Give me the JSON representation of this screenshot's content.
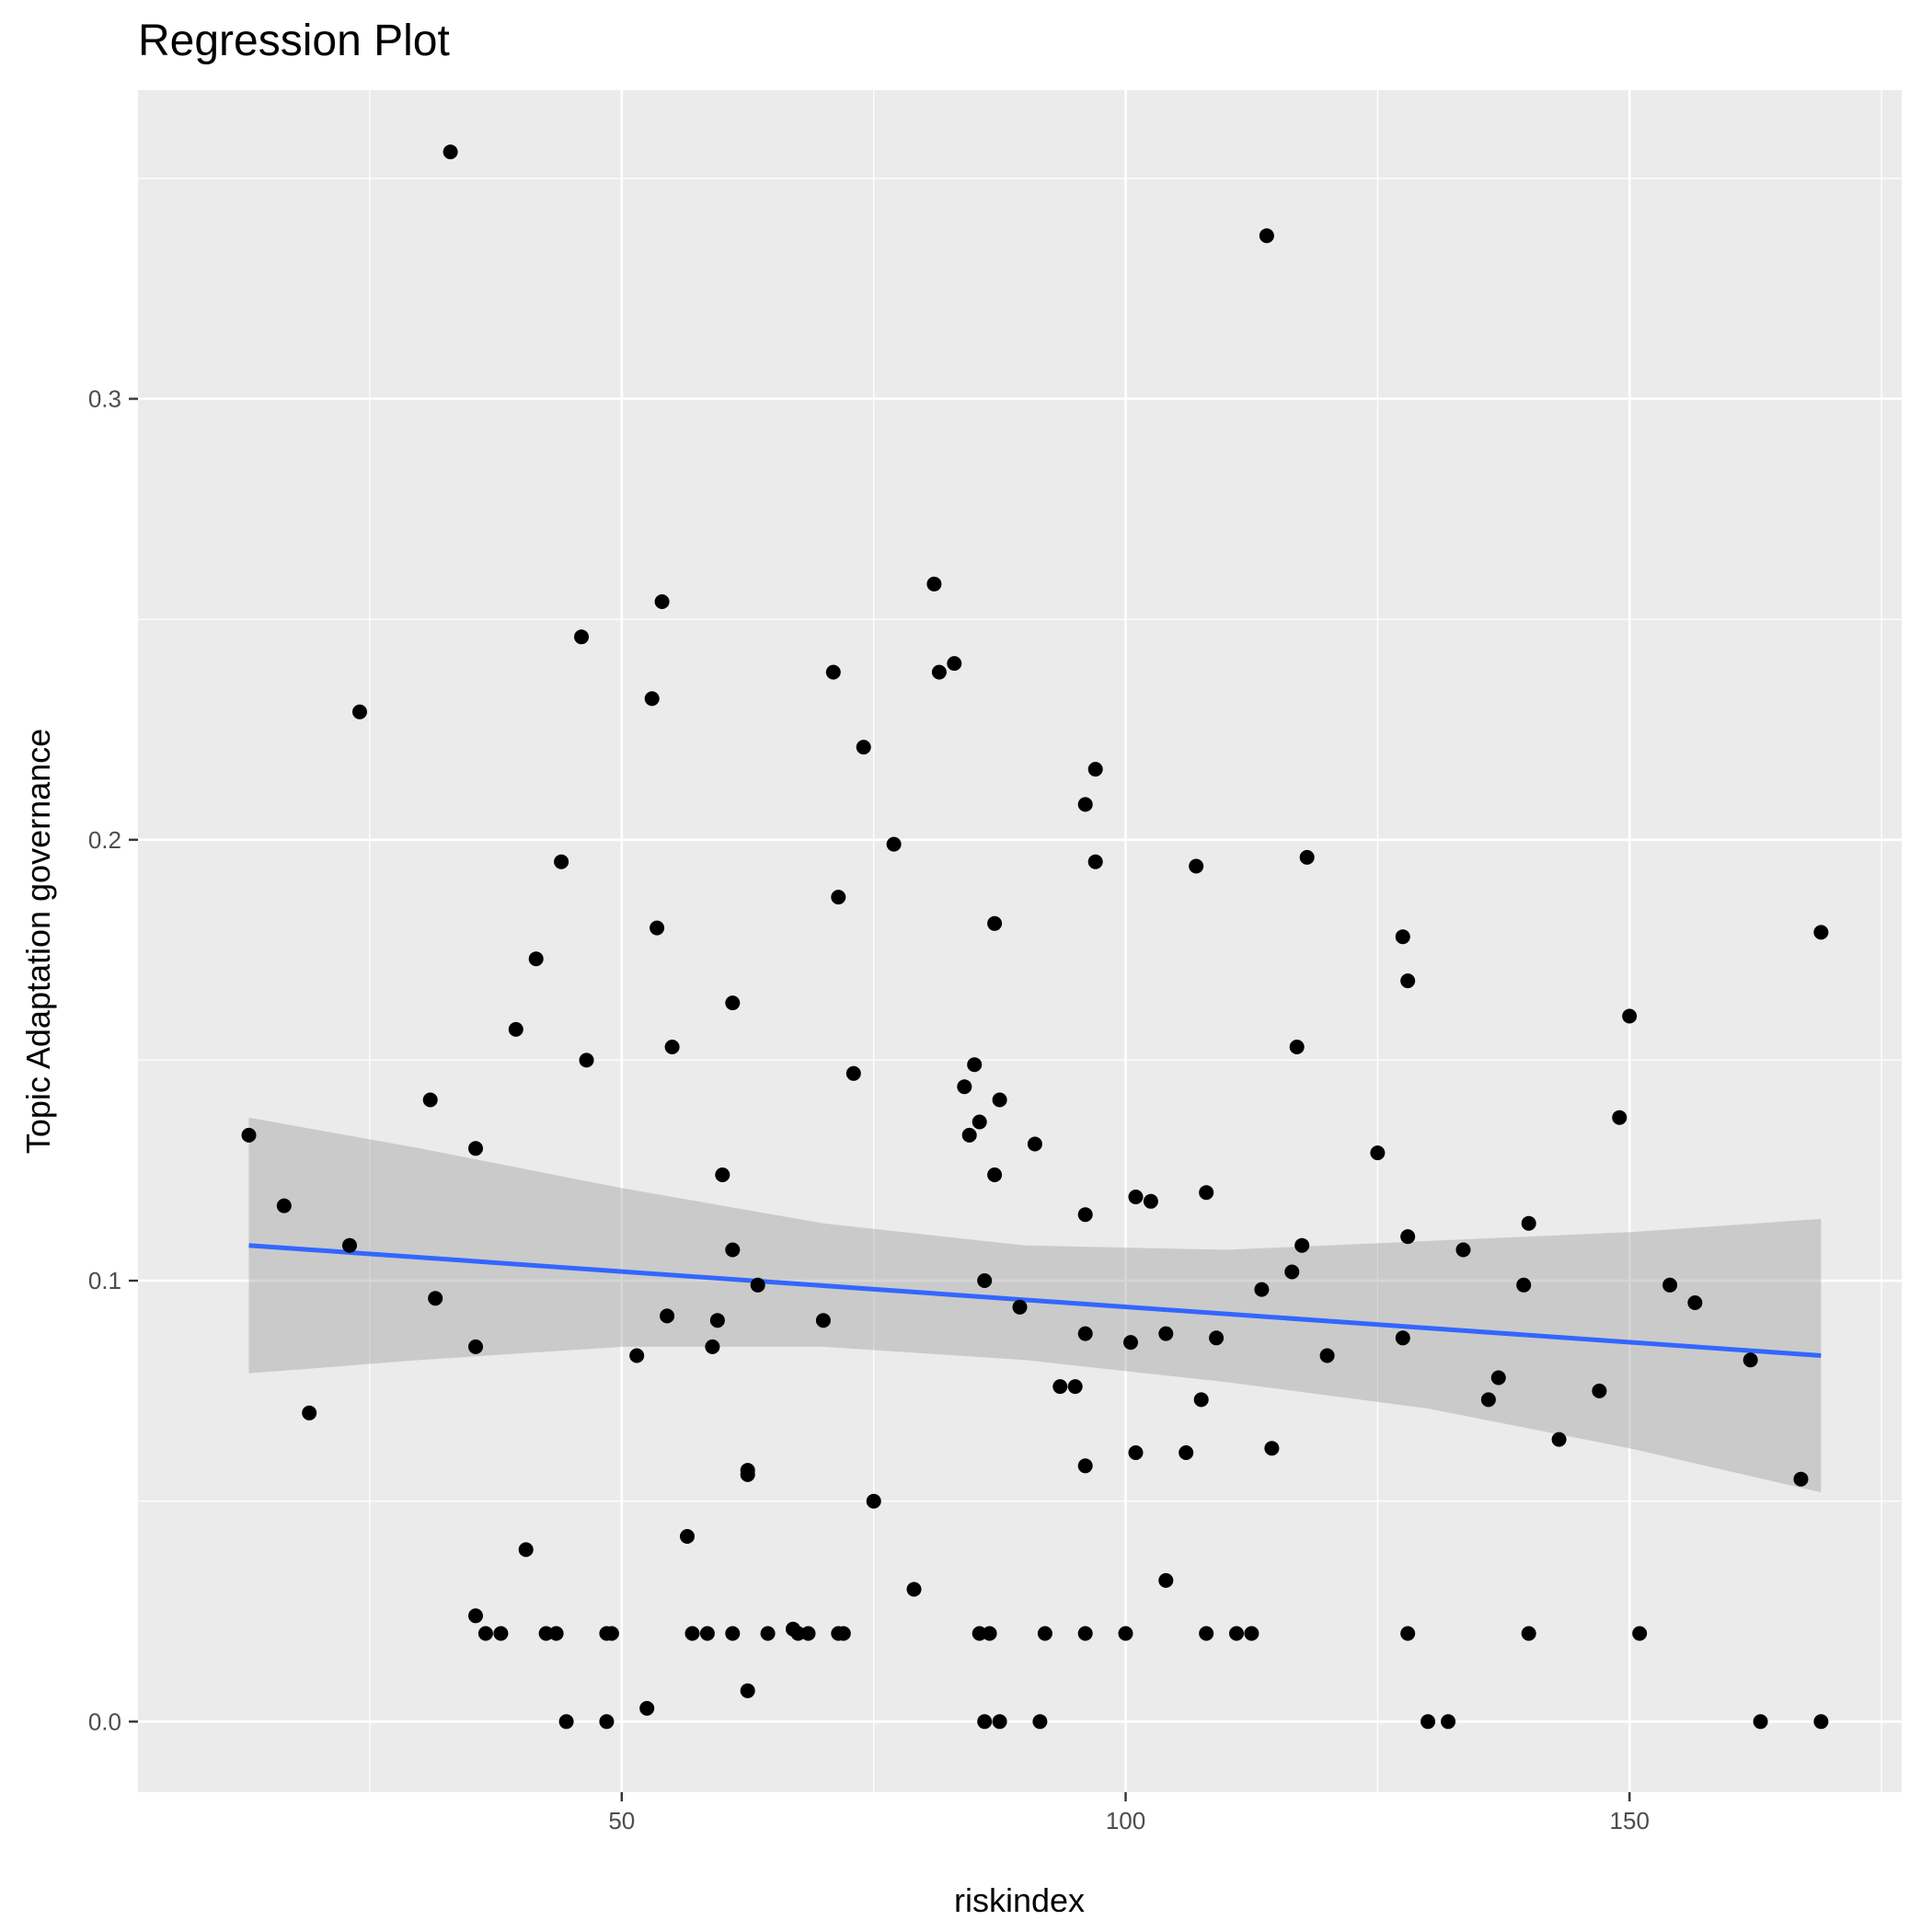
{
  "chart_data": {
    "type": "scatter",
    "title": "Regression Plot",
    "xlabel": "riskindex",
    "ylabel": "Topic Adaptation governance",
    "xlim": [
      2,
      177
    ],
    "ylim": [
      -0.016,
      0.37
    ],
    "x_ticks": [
      50,
      100,
      150
    ],
    "x_tick_labels": [
      "50",
      "100",
      "150"
    ],
    "y_ticks": [
      0.0,
      0.1,
      0.2,
      0.3
    ],
    "y_tick_labels": [
      "0.0",
      "0.1",
      "0.2",
      "0.3"
    ],
    "grid": true,
    "colors": {
      "panel": "#ebebeb",
      "grid": "#ffffff",
      "points": "#000000",
      "line": "#3366ff",
      "band": "#999999"
    },
    "points": [
      {
        "x": 33,
        "y": 0.356
      },
      {
        "x": 114,
        "y": 0.337
      },
      {
        "x": 81,
        "y": 0.258
      },
      {
        "x": 54,
        "y": 0.254
      },
      {
        "x": 46,
        "y": 0.246
      },
      {
        "x": 83,
        "y": 0.24
      },
      {
        "x": 71,
        "y": 0.238
      },
      {
        "x": 81.5,
        "y": 0.238
      },
      {
        "x": 53,
        "y": 0.232
      },
      {
        "x": 24,
        "y": 0.229
      },
      {
        "x": 74,
        "y": 0.221
      },
      {
        "x": 97,
        "y": 0.216
      },
      {
        "x": 96,
        "y": 0.208
      },
      {
        "x": 77,
        "y": 0.199
      },
      {
        "x": 118,
        "y": 0.196
      },
      {
        "x": 44,
        "y": 0.195
      },
      {
        "x": 97,
        "y": 0.195
      },
      {
        "x": 107,
        "y": 0.194
      },
      {
        "x": 71.5,
        "y": 0.187
      },
      {
        "x": 87,
        "y": 0.181
      },
      {
        "x": 53.5,
        "y": 0.18
      },
      {
        "x": 169,
        "y": 0.179
      },
      {
        "x": 127.5,
        "y": 0.178
      },
      {
        "x": 41.5,
        "y": 0.173
      },
      {
        "x": 128,
        "y": 0.168
      },
      {
        "x": 61,
        "y": 0.163
      },
      {
        "x": 150,
        "y": 0.16
      },
      {
        "x": 39.5,
        "y": 0.157
      },
      {
        "x": 55,
        "y": 0.153
      },
      {
        "x": 117,
        "y": 0.153
      },
      {
        "x": 46.5,
        "y": 0.15
      },
      {
        "x": 85,
        "y": 0.149
      },
      {
        "x": 73,
        "y": 0.147
      },
      {
        "x": 84,
        "y": 0.144
      },
      {
        "x": 31,
        "y": 0.141
      },
      {
        "x": 87.5,
        "y": 0.141
      },
      {
        "x": 149,
        "y": 0.137
      },
      {
        "x": 85.5,
        "y": 0.136
      },
      {
        "x": 84.5,
        "y": 0.133
      },
      {
        "x": 13,
        "y": 0.133
      },
      {
        "x": 91,
        "y": 0.131
      },
      {
        "x": 35.5,
        "y": 0.13
      },
      {
        "x": 125,
        "y": 0.129
      },
      {
        "x": 60,
        "y": 0.124
      },
      {
        "x": 87,
        "y": 0.124
      },
      {
        "x": 108,
        "y": 0.12
      },
      {
        "x": 101,
        "y": 0.119
      },
      {
        "x": 102.5,
        "y": 0.118
      },
      {
        "x": 16.5,
        "y": 0.117
      },
      {
        "x": 96,
        "y": 0.115
      },
      {
        "x": 140,
        "y": 0.113
      },
      {
        "x": 128,
        "y": 0.11
      },
      {
        "x": 23,
        "y": 0.108
      },
      {
        "x": 117.5,
        "y": 0.108
      },
      {
        "x": 61,
        "y": 0.107
      },
      {
        "x": 133.5,
        "y": 0.107
      },
      {
        "x": 116.5,
        "y": 0.102
      },
      {
        "x": 86,
        "y": 0.1
      },
      {
        "x": 154,
        "y": 0.099
      },
      {
        "x": 139.5,
        "y": 0.099
      },
      {
        "x": 63.5,
        "y": 0.099
      },
      {
        "x": 113.5,
        "y": 0.098
      },
      {
        "x": 31.5,
        "y": 0.096
      },
      {
        "x": 156.5,
        "y": 0.095
      },
      {
        "x": 89.5,
        "y": 0.094
      },
      {
        "x": 54.5,
        "y": 0.092
      },
      {
        "x": 59.5,
        "y": 0.091
      },
      {
        "x": 70,
        "y": 0.091
      },
      {
        "x": 96,
        "y": 0.088
      },
      {
        "x": 104,
        "y": 0.088
      },
      {
        "x": 109,
        "y": 0.087
      },
      {
        "x": 127.5,
        "y": 0.087
      },
      {
        "x": 100.5,
        "y": 0.086
      },
      {
        "x": 59,
        "y": 0.085
      },
      {
        "x": 35.5,
        "y": 0.085
      },
      {
        "x": 51.5,
        "y": 0.083
      },
      {
        "x": 120,
        "y": 0.083
      },
      {
        "x": 162,
        "y": 0.082
      },
      {
        "x": 137,
        "y": 0.078
      },
      {
        "x": 93.5,
        "y": 0.076
      },
      {
        "x": 95,
        "y": 0.076
      },
      {
        "x": 147,
        "y": 0.075
      },
      {
        "x": 136,
        "y": 0.073
      },
      {
        "x": 107.5,
        "y": 0.073
      },
      {
        "x": 19,
        "y": 0.07
      },
      {
        "x": 143,
        "y": 0.064
      },
      {
        "x": 114.5,
        "y": 0.062
      },
      {
        "x": 101,
        "y": 0.061
      },
      {
        "x": 106,
        "y": 0.061
      },
      {
        "x": 96,
        "y": 0.058
      },
      {
        "x": 62.5,
        "y": 0.057
      },
      {
        "x": 62.5,
        "y": 0.056
      },
      {
        "x": 167,
        "y": 0.055
      },
      {
        "x": 75,
        "y": 0.05
      },
      {
        "x": 56.5,
        "y": 0.042
      },
      {
        "x": 40.5,
        "y": 0.039
      },
      {
        "x": 104,
        "y": 0.032
      },
      {
        "x": 79,
        "y": 0.03
      },
      {
        "x": 35.5,
        "y": 0.024
      },
      {
        "x": 36.5,
        "y": 0.02
      },
      {
        "x": 38,
        "y": 0.02
      },
      {
        "x": 42.5,
        "y": 0.02
      },
      {
        "x": 43.5,
        "y": 0.02
      },
      {
        "x": 48.5,
        "y": 0.02
      },
      {
        "x": 49,
        "y": 0.02
      },
      {
        "x": 57,
        "y": 0.02
      },
      {
        "x": 58.5,
        "y": 0.02
      },
      {
        "x": 61,
        "y": 0.02
      },
      {
        "x": 64.5,
        "y": 0.02
      },
      {
        "x": 67,
        "y": 0.021
      },
      {
        "x": 67.5,
        "y": 0.02
      },
      {
        "x": 68.5,
        "y": 0.02
      },
      {
        "x": 71.5,
        "y": 0.02
      },
      {
        "x": 72,
        "y": 0.02
      },
      {
        "x": 85.5,
        "y": 0.02
      },
      {
        "x": 86.5,
        "y": 0.02
      },
      {
        "x": 92,
        "y": 0.02
      },
      {
        "x": 96,
        "y": 0.02
      },
      {
        "x": 100,
        "y": 0.02
      },
      {
        "x": 108,
        "y": 0.02
      },
      {
        "x": 111,
        "y": 0.02
      },
      {
        "x": 112.5,
        "y": 0.02
      },
      {
        "x": 128,
        "y": 0.02
      },
      {
        "x": 140,
        "y": 0.02
      },
      {
        "x": 151,
        "y": 0.02
      },
      {
        "x": 62.5,
        "y": 0.007
      },
      {
        "x": 52.5,
        "y": 0.003
      },
      {
        "x": 44.5,
        "y": 0.0
      },
      {
        "x": 48.5,
        "y": 0.0
      },
      {
        "x": 86,
        "y": 0.0
      },
      {
        "x": 87.5,
        "y": 0.0
      },
      {
        "x": 91.5,
        "y": 0.0
      },
      {
        "x": 130,
        "y": 0.0
      },
      {
        "x": 132,
        "y": 0.0
      },
      {
        "x": 163,
        "y": 0.0
      },
      {
        "x": 169,
        "y": 0.0
      }
    ],
    "regression": {
      "line": [
        {
          "x": 13,
          "y": 0.108
        },
        {
          "x": 169,
          "y": 0.083
        }
      ],
      "ci_upper": [
        {
          "x": 13,
          "y": 0.137
        },
        {
          "x": 30,
          "y": 0.13
        },
        {
          "x": 50,
          "y": 0.121
        },
        {
          "x": 70,
          "y": 0.113
        },
        {
          "x": 90,
          "y": 0.108
        },
        {
          "x": 110,
          "y": 0.107
        },
        {
          "x": 130,
          "y": 0.109
        },
        {
          "x": 150,
          "y": 0.111
        },
        {
          "x": 169,
          "y": 0.114
        }
      ],
      "ci_lower": [
        {
          "x": 13,
          "y": 0.079
        },
        {
          "x": 30,
          "y": 0.082
        },
        {
          "x": 50,
          "y": 0.085
        },
        {
          "x": 70,
          "y": 0.085
        },
        {
          "x": 90,
          "y": 0.082
        },
        {
          "x": 110,
          "y": 0.077
        },
        {
          "x": 130,
          "y": 0.071
        },
        {
          "x": 150,
          "y": 0.062
        },
        {
          "x": 169,
          "y": 0.052
        }
      ]
    }
  }
}
